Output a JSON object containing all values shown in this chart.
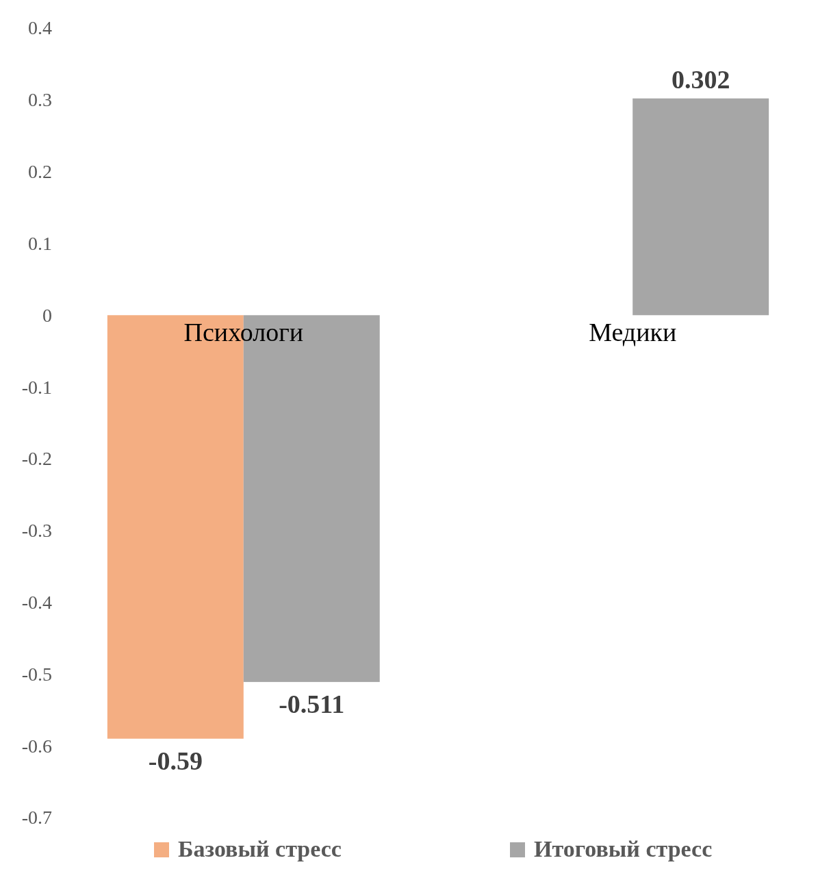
{
  "chart_data": {
    "type": "bar",
    "categories": [
      "Психологи",
      "Медики"
    ],
    "series": [
      {
        "name": "Базовый стресс",
        "color": "#f4ae82",
        "values": [
          -0.59,
          null
        ]
      },
      {
        "name": "Итоговый стресс",
        "color": "#a6a6a6",
        "values": [
          -0.511,
          0.302
        ]
      }
    ],
    "ylim": [
      -0.7,
      0.4
    ],
    "yticks": [
      -0.7,
      -0.6,
      -0.5,
      -0.4,
      -0.3,
      -0.2,
      -0.1,
      0,
      0.1,
      0.2,
      0.3,
      0.4
    ],
    "grid": false,
    "legend": "bottom",
    "data_labels": true
  }
}
